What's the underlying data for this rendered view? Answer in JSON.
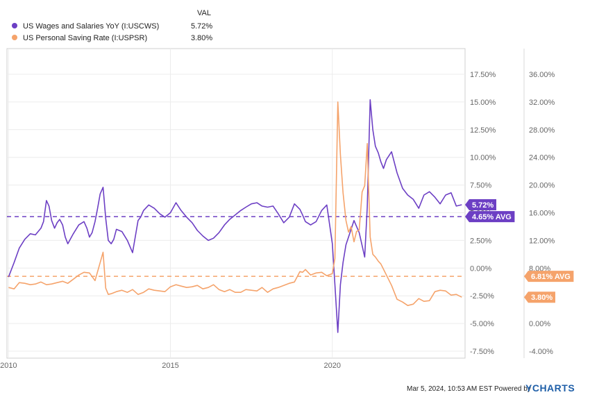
{
  "legend": {
    "header": "VAL",
    "items": [
      {
        "name": "US Wages and Salaries YoY (I:USCWS)",
        "value": "5.72%",
        "color": "#6c3fc4"
      },
      {
        "name": "US Personal Saving Rate (I:USPSR)",
        "value": "3.80%",
        "color": "#f5a36b"
      }
    ]
  },
  "footer": {
    "timestamp": "Mar 5, 2024, 10:53 AM EST Powered by",
    "brand": "YCHARTS"
  },
  "chart_data": {
    "type": "line",
    "x_ticks": [
      "2010",
      "2015",
      "2020"
    ],
    "x_tick_values": [
      2010,
      2015,
      2020
    ],
    "xlim": [
      2009.95,
      2024.1
    ],
    "left_axis": {
      "ticks": [
        "17.50%",
        "15.00%",
        "12.50%",
        "10.00%",
        "7.50%",
        "5.00%",
        "2.50%",
        "0.00%",
        "-2.50%",
        "-5.00%",
        "-7.50%"
      ],
      "tick_values": [
        17.5,
        15,
        12.5,
        10,
        7.5,
        5,
        2.5,
        0,
        -2.5,
        -5,
        -7.5
      ],
      "ylim": [
        -7.5,
        17.5
      ]
    },
    "right_axis": {
      "ticks": [
        "36.00%",
        "32.00%",
        "28.00%",
        "24.00%",
        "20.00%",
        "16.00%",
        "12.00%",
        "8.00%",
        "4.00%",
        "0.00%",
        "-4.00%"
      ],
      "tick_values": [
        36,
        32,
        28,
        24,
        20,
        16,
        12,
        8,
        4,
        0,
        -4
      ],
      "ylim": [
        -4,
        36
      ]
    },
    "series": [
      {
        "name": "US Wages and Salaries YoY (I:USCWS)",
        "axis": "left",
        "color": "#6c3fc4",
        "last_label": "5.72%",
        "avg_label": "4.65% AVG",
        "avg": 4.65,
        "x": [
          2010.0,
          2010.17,
          2010.33,
          2010.5,
          2010.67,
          2010.83,
          2011.0,
          2011.08,
          2011.17,
          2011.25,
          2011.33,
          2011.42,
          2011.5,
          2011.58,
          2011.67,
          2011.75,
          2011.83,
          2012.0,
          2012.17,
          2012.33,
          2012.42,
          2012.5,
          2012.58,
          2012.67,
          2012.75,
          2012.83,
          2012.92,
          2013.0,
          2013.08,
          2013.17,
          2013.25,
          2013.33,
          2013.5,
          2013.67,
          2013.83,
          2014.0,
          2014.08,
          2014.17,
          2014.33,
          2014.5,
          2014.67,
          2014.83,
          2015.0,
          2015.17,
          2015.33,
          2015.5,
          2015.67,
          2015.83,
          2016.0,
          2016.17,
          2016.33,
          2016.5,
          2016.67,
          2016.83,
          2017.0,
          2017.17,
          2017.33,
          2017.5,
          2017.67,
          2017.83,
          2018.0,
          2018.17,
          2018.33,
          2018.5,
          2018.67,
          2018.83,
          2019.0,
          2019.08,
          2019.17,
          2019.33,
          2019.5,
          2019.67,
          2019.83,
          2020.0,
          2020.08,
          2020.17,
          2020.25,
          2020.33,
          2020.42,
          2020.5,
          2020.67,
          2020.83,
          2021.0,
          2021.08,
          2021.17,
          2021.25,
          2021.33,
          2021.42,
          2021.5,
          2021.58,
          2021.67,
          2021.83,
          2022.0,
          2022.17,
          2022.33,
          2022.5,
          2022.67,
          2022.83,
          2023.0,
          2023.17,
          2023.33,
          2023.5,
          2023.67,
          2023.83,
          2024.0
        ],
        "y": [
          -0.8,
          0.5,
          1.8,
          2.6,
          3.1,
          3.0,
          3.6,
          4.2,
          6.1,
          5.6,
          4.3,
          3.6,
          4.1,
          4.4,
          3.9,
          2.8,
          2.2,
          3.1,
          3.9,
          4.2,
          3.6,
          2.8,
          3.2,
          4.2,
          5.4,
          6.7,
          7.3,
          4.5,
          2.5,
          2.2,
          2.6,
          3.5,
          3.3,
          2.5,
          1.4,
          4.3,
          4.6,
          5.2,
          5.7,
          5.4,
          4.9,
          4.6,
          5.0,
          5.9,
          5.2,
          4.6,
          4.1,
          3.4,
          2.9,
          2.5,
          2.7,
          3.2,
          3.9,
          4.4,
          4.8,
          5.2,
          5.5,
          5.8,
          5.9,
          5.6,
          5.5,
          5.6,
          4.9,
          4.1,
          4.6,
          5.8,
          5.3,
          4.8,
          4.2,
          3.9,
          4.2,
          5.2,
          5.7,
          2.2,
          -1.5,
          -5.8,
          -1.5,
          0.5,
          2.1,
          2.8,
          4.3,
          3.2,
          1.0,
          5.5,
          15.2,
          12.5,
          11.0,
          10.4,
          9.6,
          9.0,
          9.8,
          10.5,
          8.6,
          7.2,
          6.6,
          6.2,
          5.4,
          6.6,
          6.9,
          6.4,
          5.8,
          6.6,
          6.8,
          5.6,
          5.72
        ]
      },
      {
        "name": "US Personal Saving Rate (I:USPSR)",
        "axis": "right",
        "color": "#f5a36b",
        "last_label": "3.80%",
        "avg_label": "6.81% AVG",
        "avg": 6.81,
        "x": [
          2010.0,
          2010.17,
          2010.33,
          2010.5,
          2010.67,
          2010.83,
          2011.0,
          2011.17,
          2011.33,
          2011.5,
          2011.67,
          2011.83,
          2012.0,
          2012.17,
          2012.33,
          2012.5,
          2012.67,
          2012.75,
          2012.83,
          2012.92,
          2013.0,
          2013.08,
          2013.17,
          2013.33,
          2013.5,
          2013.67,
          2013.83,
          2014.0,
          2014.17,
          2014.33,
          2014.5,
          2014.67,
          2014.83,
          2015.0,
          2015.17,
          2015.33,
          2015.5,
          2015.67,
          2015.83,
          2016.0,
          2016.17,
          2016.33,
          2016.5,
          2016.67,
          2016.83,
          2017.0,
          2017.17,
          2017.33,
          2017.5,
          2017.67,
          2017.83,
          2018.0,
          2018.17,
          2018.33,
          2018.5,
          2018.67,
          2018.83,
          2019.0,
          2019.08,
          2019.17,
          2019.33,
          2019.5,
          2019.67,
          2019.83,
          2020.0,
          2020.08,
          2020.17,
          2020.25,
          2020.33,
          2020.42,
          2020.5,
          2020.58,
          2020.67,
          2020.75,
          2020.83,
          2020.92,
          2021.0,
          2021.08,
          2021.17,
          2021.25,
          2021.33,
          2021.42,
          2021.5,
          2021.67,
          2021.83,
          2022.0,
          2022.17,
          2022.33,
          2022.5,
          2022.67,
          2022.83,
          2023.0,
          2023.17,
          2023.33,
          2023.5,
          2023.67,
          2023.83,
          2024.0
        ],
        "y": [
          5.2,
          5.0,
          5.9,
          5.8,
          5.6,
          5.7,
          6.0,
          5.6,
          5.7,
          5.9,
          6.1,
          5.8,
          6.4,
          7.0,
          7.4,
          7.3,
          6.2,
          7.5,
          8.8,
          10.3,
          5.1,
          4.2,
          4.3,
          4.6,
          4.8,
          4.5,
          4.9,
          4.2,
          4.5,
          5.0,
          4.8,
          4.7,
          4.6,
          5.3,
          5.6,
          5.4,
          5.2,
          5.3,
          5.5,
          5.0,
          5.2,
          5.6,
          4.9,
          4.6,
          4.9,
          4.5,
          4.5,
          4.9,
          4.8,
          4.7,
          5.2,
          4.5,
          5.0,
          5.2,
          5.5,
          5.8,
          6.0,
          7.5,
          7.4,
          7.8,
          7.0,
          7.3,
          7.4,
          6.9,
          7.2,
          9.4,
          32.0,
          24.4,
          18.9,
          14.9,
          13.2,
          14.0,
          11.8,
          13.3,
          13.5,
          19.0,
          19.9,
          26.0,
          12.5,
          10.0,
          9.6,
          9.0,
          8.6,
          7.0,
          5.5,
          3.5,
          3.1,
          2.6,
          2.8,
          3.6,
          3.2,
          3.3,
          4.6,
          4.8,
          4.7,
          4.1,
          4.2,
          3.8
        ]
      }
    ]
  }
}
